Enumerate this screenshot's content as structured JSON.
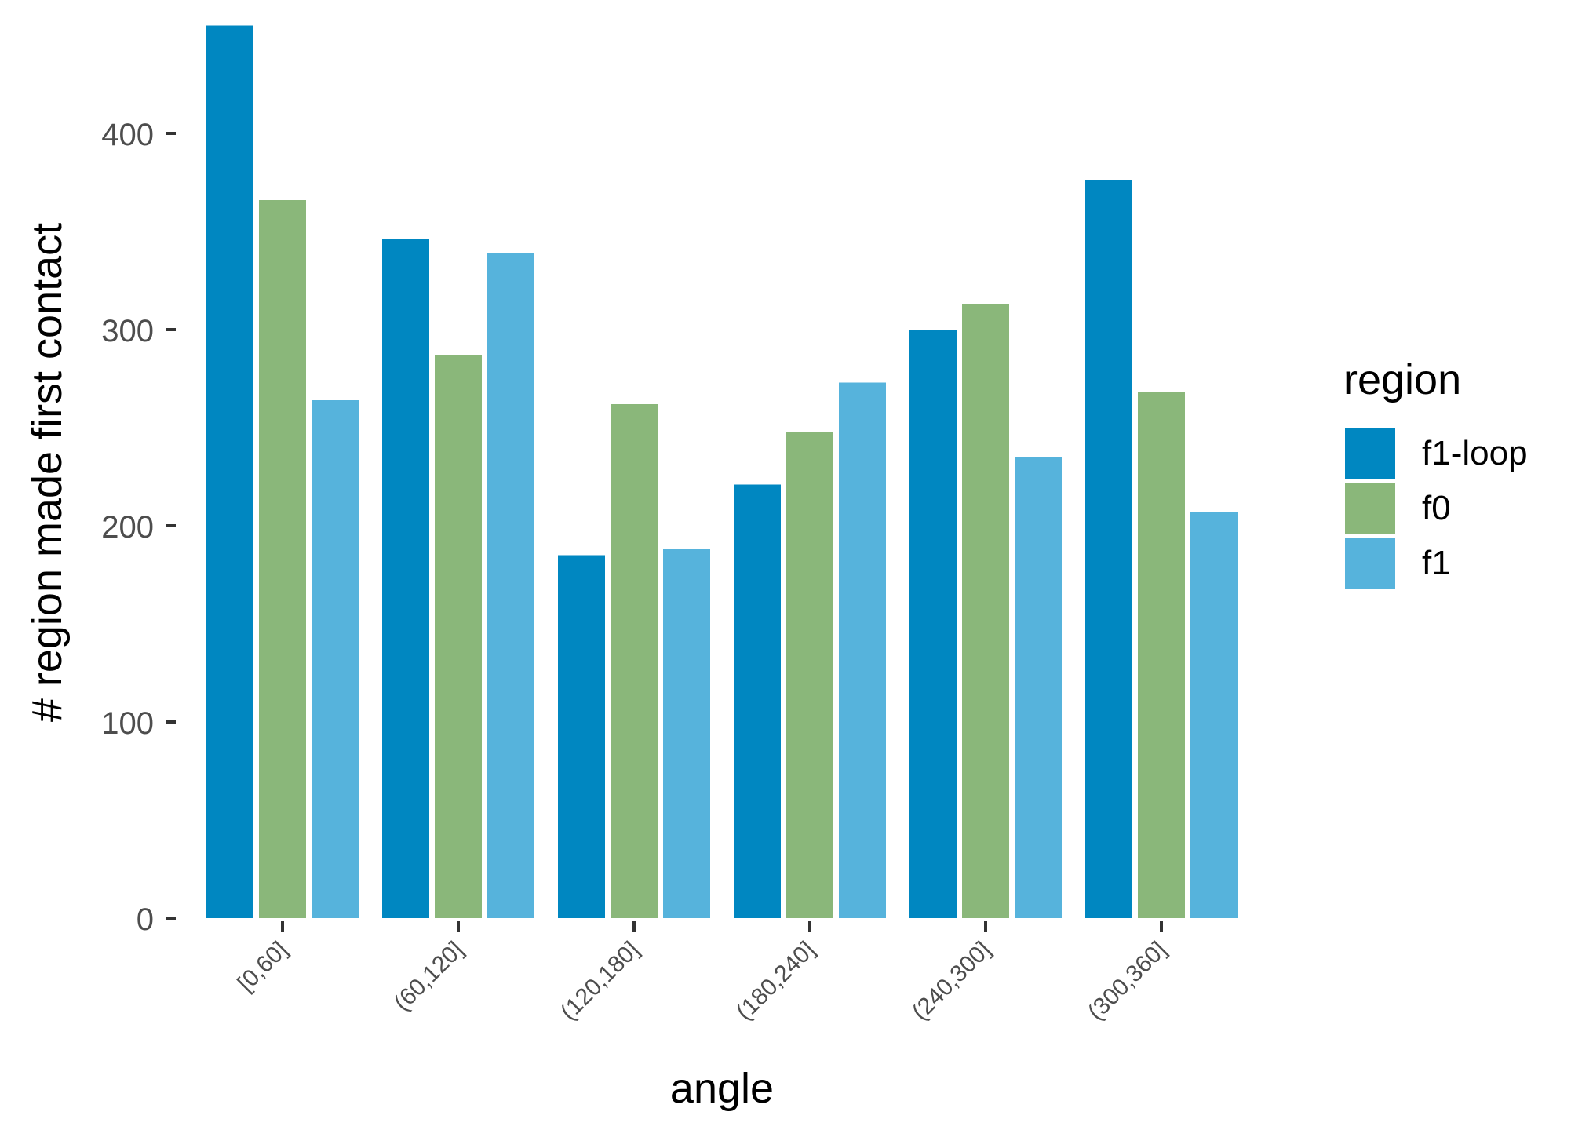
{
  "chart_data": {
    "type": "bar",
    "title": "",
    "xlabel": "angle",
    "ylabel": "# region made first contact",
    "ylim": [
      0,
      455
    ],
    "yticks": [
      0,
      100,
      200,
      300,
      400
    ],
    "categories": [
      "[0,60]",
      "(60,120]",
      "(120,180]",
      "(180,240]",
      "(240,300]",
      "(300,360]"
    ],
    "series": [
      {
        "name": "f1-loop",
        "color": "#0087C1",
        "values": [
          455,
          346,
          185,
          221,
          300,
          376
        ]
      },
      {
        "name": "f0",
        "color": "#8AB77A",
        "values": [
          366,
          287,
          262,
          248,
          313,
          268
        ]
      },
      {
        "name": "f1",
        "color": "#56B3DC",
        "values": [
          264,
          339,
          188,
          273,
          235,
          207
        ]
      }
    ],
    "legend": {
      "title": "region",
      "position": "right"
    },
    "grid": false
  }
}
